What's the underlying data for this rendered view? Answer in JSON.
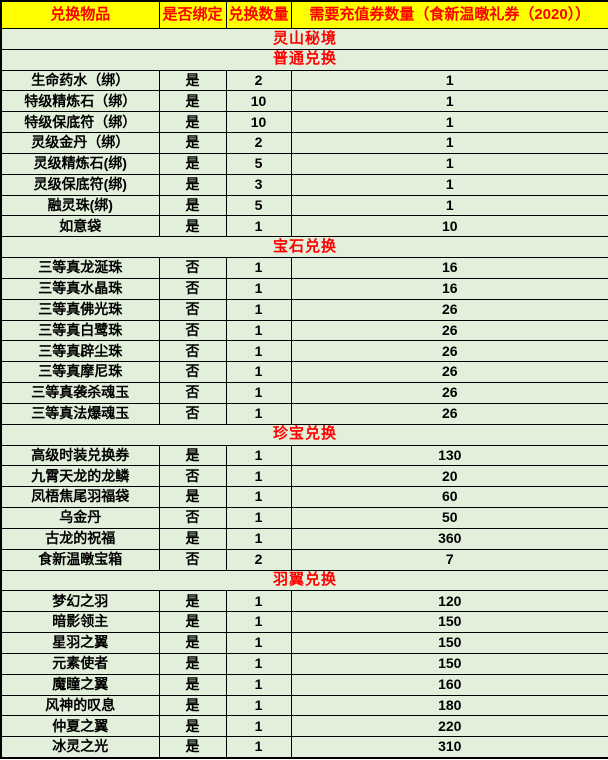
{
  "colors": {
    "header_bg": "#ffff00",
    "header_text": "#ff0000",
    "section_text": "#ff0000",
    "cell_bg": "#e2efda",
    "cell_text": "#000000",
    "border": "#000000"
  },
  "table": {
    "columns": [
      "兑换物品",
      "是否绑定",
      "兑换数量",
      "需要充值券数量（食新温暾礼券（2020））"
    ],
    "rows": [
      {
        "type": "section",
        "label": "灵山秘境"
      },
      {
        "type": "section",
        "label": "普通兑换"
      },
      {
        "type": "item",
        "name": "生命药水（绑）",
        "bound": "是",
        "qty": "2",
        "cost": "1"
      },
      {
        "type": "item",
        "name": "特级精炼石（绑）",
        "bound": "是",
        "qty": "10",
        "cost": "1"
      },
      {
        "type": "item",
        "name": "特级保底符（绑）",
        "bound": "是",
        "qty": "10",
        "cost": "1"
      },
      {
        "type": "item",
        "name": "灵级金丹（绑）",
        "bound": "是",
        "qty": "2",
        "cost": "1"
      },
      {
        "type": "item",
        "name": "灵级精炼石(绑)",
        "bound": "是",
        "qty": "5",
        "cost": "1"
      },
      {
        "type": "item",
        "name": "灵级保底符(绑)",
        "bound": "是",
        "qty": "3",
        "cost": "1"
      },
      {
        "type": "item",
        "name": "融灵珠(绑)",
        "bound": "是",
        "qty": "5",
        "cost": "1"
      },
      {
        "type": "item",
        "name": "如意袋",
        "bound": "是",
        "qty": "1",
        "cost": "10"
      },
      {
        "type": "section",
        "label": "宝石兑换"
      },
      {
        "type": "item",
        "name": "三等真龙涎珠",
        "bound": "否",
        "qty": "1",
        "cost": "16"
      },
      {
        "type": "item",
        "name": "三等真水晶珠",
        "bound": "否",
        "qty": "1",
        "cost": "16"
      },
      {
        "type": "item",
        "name": "三等真佛光珠",
        "bound": "否",
        "qty": "1",
        "cost": "26"
      },
      {
        "type": "item",
        "name": "三等真白鹭珠",
        "bound": "否",
        "qty": "1",
        "cost": "26"
      },
      {
        "type": "item",
        "name": "三等真辟尘珠",
        "bound": "否",
        "qty": "1",
        "cost": "26"
      },
      {
        "type": "item",
        "name": "三等真摩尼珠",
        "bound": "否",
        "qty": "1",
        "cost": "26"
      },
      {
        "type": "item",
        "name": "三等真袭杀魂玉",
        "bound": "否",
        "qty": "1",
        "cost": "26"
      },
      {
        "type": "item",
        "name": "三等真法爆魂玉",
        "bound": "否",
        "qty": "1",
        "cost": "26"
      },
      {
        "type": "section",
        "label": "珍宝兑换"
      },
      {
        "type": "item",
        "name": "高级时装兑换券",
        "bound": "是",
        "qty": "1",
        "cost": "130"
      },
      {
        "type": "item",
        "name": "九霄天龙的龙鳞",
        "bound": "否",
        "qty": "1",
        "cost": "20"
      },
      {
        "type": "item",
        "name": "凤梧焦尾羽福袋",
        "bound": "是",
        "qty": "1",
        "cost": "60"
      },
      {
        "type": "item",
        "name": "乌金丹",
        "bound": "否",
        "qty": "1",
        "cost": "50"
      },
      {
        "type": "item",
        "name": "古龙的祝福",
        "bound": "是",
        "qty": "1",
        "cost": "360"
      },
      {
        "type": "item",
        "name": "食新温暾宝箱",
        "bound": "否",
        "qty": "2",
        "cost": "7"
      },
      {
        "type": "section",
        "label": "羽翼兑换"
      },
      {
        "type": "item",
        "name": "梦幻之羽",
        "bound": "是",
        "qty": "1",
        "cost": "120"
      },
      {
        "type": "item",
        "name": "暗影领主",
        "bound": "是",
        "qty": "1",
        "cost": "150"
      },
      {
        "type": "item",
        "name": "星羽之翼",
        "bound": "是",
        "qty": "1",
        "cost": "150"
      },
      {
        "type": "item",
        "name": "元素使者",
        "bound": "是",
        "qty": "1",
        "cost": "150"
      },
      {
        "type": "item",
        "name": "魔瞳之翼",
        "bound": "是",
        "qty": "1",
        "cost": "160"
      },
      {
        "type": "item",
        "name": "风神的叹息",
        "bound": "是",
        "qty": "1",
        "cost": "180"
      },
      {
        "type": "item",
        "name": "仲夏之翼",
        "bound": "是",
        "qty": "1",
        "cost": "220"
      },
      {
        "type": "item",
        "name": "冰灵之光",
        "bound": "是",
        "qty": "1",
        "cost": "310"
      }
    ]
  }
}
